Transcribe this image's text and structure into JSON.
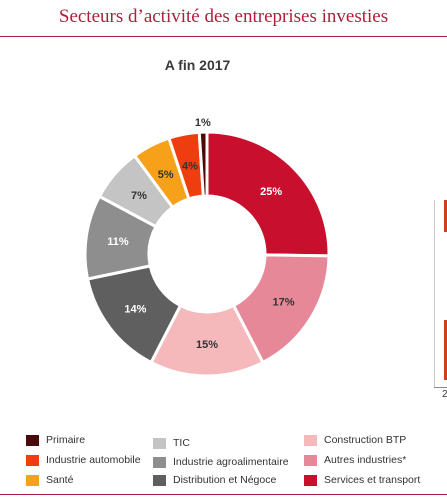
{
  "header": {
    "title": "Secteurs d’activité des entreprises investies"
  },
  "chart_data": {
    "type": "pie",
    "donut": true,
    "title": "A fin 2017",
    "axis_tick_partial": "2",
    "categories": [
      "Services et transport",
      "Autres industries*",
      "Construction BTP",
      "Distribution et Négoce",
      "Industrie agroalimentaire",
      "TIC",
      "Santé",
      "Industrie automobile",
      "Primaire"
    ],
    "values": [
      25,
      17,
      15,
      14,
      11,
      7,
      5,
      4,
      1
    ],
    "labels": [
      "25%",
      "17%",
      "15%",
      "14%",
      "11%",
      "7%",
      "5%",
      "4%",
      "1%"
    ],
    "colors": [
      "#c8102e",
      "#e68897",
      "#f5b8bb",
      "#5f5f5f",
      "#8e8e8e",
      "#c4c4c4",
      "#f7a11a",
      "#ee3e10",
      "#4a0a0a"
    ],
    "label_colors": [
      "#ffffff",
      "#333333",
      "#333333",
      "#ffffff",
      "#ffffff",
      "#333333",
      "#333333",
      "#333333",
      "#333333"
    ],
    "legend": {
      "placement": "bottom",
      "items": [
        {
          "label": "Primaire",
          "color": "#4a0a0a"
        },
        {
          "label": "Industrie automobile",
          "color": "#ee3e10"
        },
        {
          "label": "Santé",
          "color": "#f7a11a"
        },
        {
          "label": "TIC",
          "color": "#c4c4c4"
        },
        {
          "label": "Industrie agroalimentaire",
          "color": "#8e8e8e"
        },
        {
          "label": "Distribution et Négoce",
          "color": "#5f5f5f"
        },
        {
          "label": "Construction BTP",
          "color": "#f5b8bb"
        },
        {
          "label": "Autres industries*",
          "color": "#e68897"
        },
        {
          "label": "Services et transport",
          "color": "#c8102e"
        }
      ]
    }
  }
}
